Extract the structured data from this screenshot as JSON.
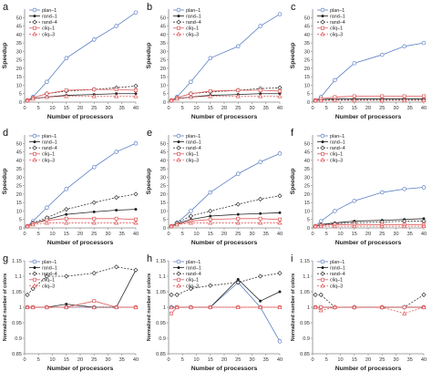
{
  "figure": {
    "ylabel_speedup": "Speedup",
    "ylabel_colors": "Normalized number of colors",
    "xlabel": "Number of processors"
  },
  "legend": [
    {
      "name": "plan–1",
      "color": "#5b7fc4",
      "marker": "circle",
      "dash": "",
      "filled": false
    },
    {
      "name": "rand–1",
      "color": "#222222",
      "marker": "dot",
      "dash": "",
      "filled": true
    },
    {
      "name": "rand–4",
      "color": "#333333",
      "marker": "diamond",
      "dash": "2,1.5",
      "filled": false
    },
    {
      "name": "cliq–1",
      "color": "#e05a5a",
      "marker": "square",
      "dash": "",
      "filled": false
    },
    {
      "name": "cliq–3",
      "color": "#e05a5a",
      "marker": "triangle",
      "dash": "2,1.5",
      "filled": false
    }
  ],
  "chart_data": [
    {
      "panel": "a",
      "type": "line",
      "x": [
        1,
        3,
        8,
        15,
        25,
        33,
        40
      ],
      "xlim": [
        0,
        40
      ],
      "xticks": [
        0,
        5,
        10,
        15,
        20,
        25,
        30,
        35,
        40
      ],
      "ylim": [
        0,
        55
      ],
      "yticks": [
        0,
        5,
        10,
        15,
        20,
        25,
        30,
        35,
        40,
        45,
        50
      ],
      "ylabel": "Speedup",
      "xlabel": "Number of processors",
      "series": [
        {
          "name": "plan–1",
          "values": [
            1,
            3,
            12,
            26,
            37,
            45,
            53
          ]
        },
        {
          "name": "rand–1",
          "values": [
            1,
            2,
            3,
            4,
            4.5,
            5,
            5
          ]
        },
        {
          "name": "rand–4",
          "values": [
            1,
            2.5,
            5,
            6.5,
            7.5,
            8.5,
            9.5
          ]
        },
        {
          "name": "cliq–1",
          "values": [
            1,
            2.5,
            5,
            7,
            7.5,
            7.5,
            7
          ]
        },
        {
          "name": "cliq–3",
          "values": [
            1,
            2,
            3,
            3.5,
            3.5,
            3.5,
            3.5
          ]
        }
      ]
    },
    {
      "panel": "b",
      "type": "line",
      "x": [
        1,
        3,
        8,
        15,
        25,
        33,
        40
      ],
      "xlim": [
        0,
        40
      ],
      "xticks": [
        0,
        5,
        10,
        15,
        20,
        25,
        30,
        35,
        40
      ],
      "ylim": [
        0,
        55
      ],
      "yticks": [
        0,
        5,
        10,
        15,
        20,
        25,
        30,
        35,
        40,
        45,
        50
      ],
      "ylabel": "Speedup",
      "xlabel": "Number of processors",
      "series": [
        {
          "name": "plan–1",
          "values": [
            1,
            3,
            12,
            26,
            33,
            45,
            52
          ]
        },
        {
          "name": "rand–1",
          "values": [
            1,
            2,
            3,
            4,
            4.5,
            5,
            5
          ]
        },
        {
          "name": "rand–4",
          "values": [
            1,
            2.5,
            5,
            6,
            7,
            8,
            8.5
          ]
        },
        {
          "name": "cliq–1",
          "values": [
            1,
            2.5,
            5,
            6.5,
            7,
            7,
            6.5
          ]
        },
        {
          "name": "cliq–3",
          "values": [
            1,
            2,
            3,
            3.5,
            3.5,
            3.5,
            3.5
          ]
        }
      ]
    },
    {
      "panel": "c",
      "type": "line",
      "x": [
        1,
        3,
        8,
        15,
        25,
        33,
        40
      ],
      "xlim": [
        0,
        40
      ],
      "xticks": [
        0,
        5,
        10,
        15,
        20,
        25,
        30,
        35,
        40
      ],
      "ylim": [
        0,
        55
      ],
      "yticks": [
        0,
        5,
        10,
        15,
        20,
        25,
        30,
        35,
        40,
        45,
        50
      ],
      "ylabel": "Speedup",
      "xlabel": "Number of processors",
      "series": [
        {
          "name": "plan–1",
          "values": [
            1,
            3,
            13,
            23,
            28,
            33,
            35
          ]
        },
        {
          "name": "rand–1",
          "values": [
            1,
            1.5,
            2,
            2,
            2,
            2,
            2
          ]
        },
        {
          "name": "rand–4",
          "values": [
            1,
            1.2,
            1.5,
            1.5,
            1.5,
            1.5,
            1.5
          ]
        },
        {
          "name": "cliq–1",
          "values": [
            1,
            2,
            3,
            3.5,
            3.5,
            3.5,
            3.5
          ]
        },
        {
          "name": "cliq–3",
          "values": [
            1,
            1,
            1,
            1,
            1,
            1,
            1
          ]
        }
      ]
    },
    {
      "panel": "d",
      "type": "line",
      "x": [
        1,
        3,
        8,
        15,
        25,
        33,
        40
      ],
      "xlim": [
        0,
        40
      ],
      "xticks": [
        0,
        5,
        10,
        15,
        20,
        25,
        30,
        35,
        40
      ],
      "ylim": [
        0,
        55
      ],
      "yticks": [
        0,
        5,
        10,
        15,
        20,
        25,
        30,
        35,
        40,
        45,
        50
      ],
      "ylabel": "Speedup",
      "xlabel": "Number of processors",
      "series": [
        {
          "name": "plan–1",
          "values": [
            1,
            4,
            12,
            23,
            36,
            45,
            50
          ]
        },
        {
          "name": "rand–1",
          "values": [
            1,
            2.5,
            5,
            8,
            9.5,
            10.5,
            11
          ]
        },
        {
          "name": "rand–4",
          "values": [
            1,
            3,
            6,
            11,
            15,
            18,
            20
          ]
        },
        {
          "name": "cliq–1",
          "values": [
            1,
            2.5,
            4.5,
            5.5,
            5.5,
            5.5,
            5
          ]
        },
        {
          "name": "cliq–3",
          "values": [
            1,
            2,
            3,
            3,
            3,
            3,
            3
          ]
        }
      ]
    },
    {
      "panel": "e",
      "type": "line",
      "x": [
        1,
        3,
        8,
        15,
        25,
        33,
        40
      ],
      "xlim": [
        0,
        40
      ],
      "xticks": [
        0,
        5,
        10,
        15,
        20,
        25,
        30,
        35,
        40
      ],
      "ylim": [
        0,
        55
      ],
      "yticks": [
        0,
        5,
        10,
        15,
        20,
        25,
        30,
        35,
        40,
        45,
        50
      ],
      "ylabel": "Speedup",
      "xlabel": "Number of processors",
      "series": [
        {
          "name": "plan–1",
          "values": [
            1,
            3,
            10,
            21,
            32,
            39,
            44
          ]
        },
        {
          "name": "rand–1",
          "values": [
            1,
            2.5,
            5,
            7,
            8,
            8.5,
            9
          ]
        },
        {
          "name": "rand–4",
          "values": [
            1,
            3,
            7,
            10,
            14,
            17,
            19
          ]
        },
        {
          "name": "cliq–1",
          "values": [
            1,
            2,
            4,
            5,
            5.5,
            5.5,
            5
          ]
        },
        {
          "name": "cliq–3",
          "values": [
            1,
            2,
            3,
            3,
            3,
            3,
            3
          ]
        }
      ]
    },
    {
      "panel": "f",
      "type": "line",
      "x": [
        1,
        3,
        8,
        15,
        25,
        33,
        40
      ],
      "xlim": [
        0,
        40
      ],
      "xticks": [
        0,
        5,
        10,
        15,
        20,
        25,
        30,
        35,
        40
      ],
      "ylim": [
        0,
        55
      ],
      "yticks": [
        0,
        5,
        10,
        15,
        20,
        25,
        30,
        35,
        40,
        45,
        50
      ],
      "ylabel": "Speedup",
      "xlabel": "Number of processors",
      "series": [
        {
          "name": "plan–1",
          "values": [
            1,
            4,
            10,
            16,
            21,
            23,
            24
          ]
        },
        {
          "name": "rand–1",
          "values": [
            1,
            2,
            3,
            4,
            4.5,
            5,
            5.5
          ]
        },
        {
          "name": "rand–4",
          "values": [
            1,
            2,
            2.5,
            3,
            3.5,
            4,
            4
          ]
        },
        {
          "name": "cliq–1",
          "values": [
            1,
            1.5,
            2,
            2,
            2,
            2,
            2
          ]
        },
        {
          "name": "cliq–3",
          "values": [
            1,
            1,
            1,
            1,
            1,
            1,
            1
          ]
        }
      ]
    },
    {
      "panel": "g",
      "type": "line",
      "x": [
        1,
        3,
        8,
        15,
        25,
        33,
        40
      ],
      "xlim": [
        0,
        40
      ],
      "xticks": [
        0,
        5,
        10,
        15,
        20,
        25,
        30,
        35,
        40
      ],
      "ylim": [
        0.85,
        1.15
      ],
      "yticks": [
        0.85,
        0.9,
        0.95,
        1,
        1.05,
        1.1,
        1.15
      ],
      "ylabel": "Normalized number of colors",
      "xlabel": "Number of processors",
      "series": [
        {
          "name": "plan–1",
          "values": [
            1,
            1,
            1,
            1,
            1,
            1,
            1
          ]
        },
        {
          "name": "rand–1",
          "values": [
            1,
            1,
            1,
            1.01,
            1,
            1,
            1.12
          ]
        },
        {
          "name": "rand–4",
          "values": [
            1.04,
            1.06,
            1.1,
            1.1,
            1.11,
            1.13,
            1.12
          ]
        },
        {
          "name": "cliq–1",
          "values": [
            1,
            1,
            1,
            1,
            1.02,
            1,
            1
          ]
        },
        {
          "name": "cliq–3",
          "values": [
            1,
            1,
            1,
            1,
            1,
            1,
            1
          ]
        }
      ]
    },
    {
      "panel": "h",
      "type": "line",
      "x": [
        1,
        3,
        8,
        15,
        25,
        33,
        40
      ],
      "xlim": [
        0,
        40
      ],
      "xticks": [
        0,
        5,
        10,
        15,
        20,
        25,
        30,
        35,
        40
      ],
      "ylim": [
        0.85,
        1.15
      ],
      "yticks": [
        0.85,
        0.9,
        0.95,
        1,
        1.05,
        1.1,
        1.15
      ],
      "ylabel": "Normalized number of colors",
      "xlabel": "Number of processors",
      "series": [
        {
          "name": "plan–1",
          "values": [
            1,
            1,
            1,
            1,
            1.08,
            1,
            0.89
          ]
        },
        {
          "name": "rand–1",
          "values": [
            1,
            1,
            1,
            1,
            1.09,
            1.02,
            1.05
          ]
        },
        {
          "name": "rand–4",
          "values": [
            1.04,
            1.04,
            1.06,
            1.07,
            1.08,
            1.1,
            1.11
          ]
        },
        {
          "name": "cliq–1",
          "values": [
            0.98,
            1,
            1,
            1,
            1,
            1,
            1
          ]
        },
        {
          "name": "cliq–3",
          "values": [
            1,
            1,
            1,
            1,
            1,
            1,
            1
          ]
        }
      ]
    },
    {
      "panel": "i",
      "type": "line",
      "x": [
        1,
        3,
        8,
        15,
        25,
        33,
        40
      ],
      "xlim": [
        0,
        40
      ],
      "xticks": [
        0,
        5,
        10,
        15,
        20,
        25,
        30,
        35,
        40
      ],
      "ylim": [
        0.85,
        1.15
      ],
      "yticks": [
        0.85,
        0.9,
        0.95,
        1,
        1.05,
        1.1,
        1.15
      ],
      "ylabel": "Normalized number of colors",
      "xlabel": "Number of processors",
      "series": [
        {
          "name": "plan–1",
          "values": [
            1,
            1,
            1,
            1,
            1,
            1,
            1
          ]
        },
        {
          "name": "rand–1",
          "values": [
            1,
            1,
            1,
            1,
            1,
            1,
            1
          ]
        },
        {
          "name": "rand–4",
          "values": [
            1.04,
            1.04,
            1.0,
            1.0,
            1.0,
            1.0,
            1.04
          ]
        },
        {
          "name": "cliq–1",
          "values": [
            1,
            1,
            1,
            1,
            1,
            1,
            1
          ]
        },
        {
          "name": "cliq–3",
          "values": [
            1,
            0.99,
            1,
            1,
            1,
            0.98,
            1
          ]
        }
      ]
    }
  ]
}
